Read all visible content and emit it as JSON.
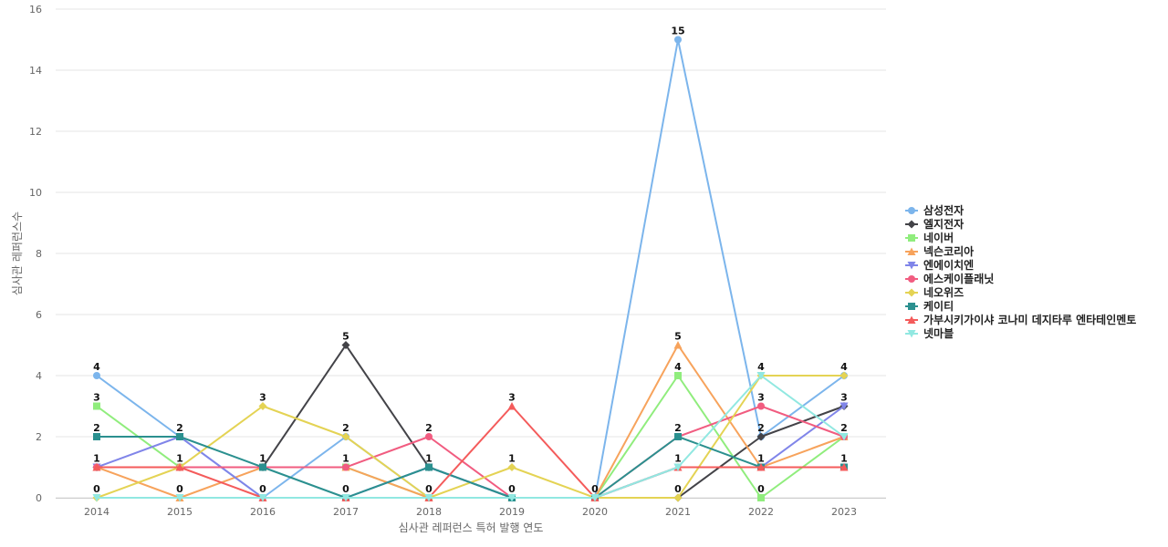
{
  "chart_data": {
    "type": "line",
    "title": "",
    "xlabel": "심사관 레퍼런스 특허 발행 연도",
    "ylabel": "심사관 레퍼런스수",
    "ylim": [
      0,
      16
    ],
    "yticks": [
      0,
      2,
      4,
      6,
      8,
      10,
      12,
      14,
      16
    ],
    "grid": true,
    "legend_position": "right",
    "categories": [
      "2014",
      "2015",
      "2016",
      "2017",
      "2018",
      "2019",
      "2020",
      "2021",
      "2022",
      "2023"
    ],
    "series": [
      {
        "name": "삼성전자",
        "color": "#7cb5ec",
        "marker": "circle",
        "values": [
          4,
          2,
          0,
          2,
          0,
          0,
          0,
          15,
          2,
          4
        ]
      },
      {
        "name": "엘지전자",
        "color": "#434348",
        "marker": "diamond",
        "values": [
          1,
          1,
          1,
          5,
          1,
          0,
          0,
          0,
          2,
          3
        ]
      },
      {
        "name": "네이버",
        "color": "#90ed7d",
        "marker": "square",
        "values": [
          3,
          1,
          1,
          1,
          0,
          0,
          0,
          4,
          0,
          2
        ]
      },
      {
        "name": "넥슨코리아",
        "color": "#f7a35c",
        "marker": "triangle",
        "values": [
          1,
          0,
          1,
          1,
          0,
          0,
          0,
          5,
          1,
          2
        ]
      },
      {
        "name": "엔에이치엔",
        "color": "#8085e9",
        "marker": "triangle-down",
        "values": [
          1,
          2,
          0,
          0,
          1,
          0,
          0,
          1,
          1,
          3
        ]
      },
      {
        "name": "에스케이플래닛",
        "color": "#f15c80",
        "marker": "circle",
        "values": [
          1,
          1,
          1,
          1,
          2,
          0,
          0,
          2,
          3,
          2
        ]
      },
      {
        "name": "네오위즈",
        "color": "#e4d354",
        "marker": "diamond",
        "values": [
          0,
          1,
          3,
          2,
          0,
          1,
          0,
          0,
          4,
          4
        ]
      },
      {
        "name": "케이티",
        "color": "#2b908f",
        "marker": "square",
        "values": [
          2,
          2,
          1,
          0,
          1,
          0,
          0,
          2,
          1,
          1
        ]
      },
      {
        "name": "가부시키가이샤 코나미 데지타루 엔타테인멘토",
        "color": "#f45b5b",
        "marker": "triangle",
        "values": [
          1,
          1,
          0,
          0,
          0,
          3,
          0,
          1,
          1,
          1
        ]
      },
      {
        "name": "넷마블",
        "color": "#91e8e1",
        "marker": "triangle-down",
        "values": [
          0,
          0,
          0,
          0,
          0,
          0,
          0,
          1,
          4,
          2
        ]
      }
    ],
    "data_labels": [
      {
        "category": "2014",
        "values": [
          4,
          3,
          2,
          1,
          0
        ]
      },
      {
        "category": "2015",
        "values": [
          2,
          1,
          0
        ]
      },
      {
        "category": "2016",
        "values": [
          3,
          1,
          0
        ]
      },
      {
        "category": "2017",
        "values": [
          5,
          2,
          1,
          0
        ]
      },
      {
        "category": "2018",
        "values": [
          2,
          1,
          0
        ]
      },
      {
        "category": "2019",
        "values": [
          3,
          1,
          0
        ]
      },
      {
        "category": "2020",
        "values": [
          0
        ]
      },
      {
        "category": "2021",
        "values": [
          15,
          5,
          4,
          2,
          1,
          0
        ]
      },
      {
        "category": "2022",
        "values": [
          4,
          3,
          2,
          1,
          0
        ]
      },
      {
        "category": "2023",
        "values": [
          4,
          3,
          2,
          1
        ]
      }
    ]
  }
}
